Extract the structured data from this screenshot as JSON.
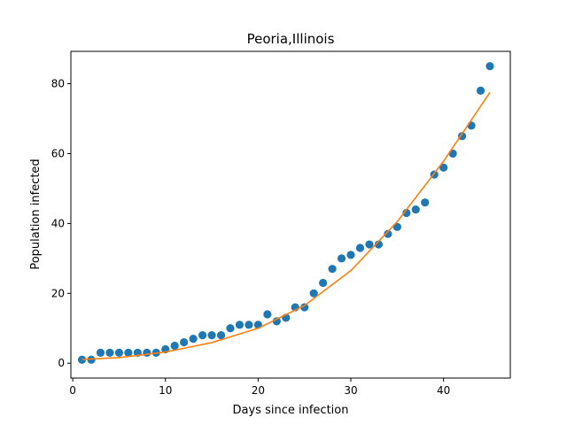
{
  "chart_data": {
    "type": "scatter",
    "title": "Peoria,Illinois",
    "xlabel": "Days since infection",
    "ylabel": "Population infected",
    "xlim": [
      -0.2,
      47.2
    ],
    "ylim": [
      -4.25,
      89.25
    ],
    "xticks": [
      0,
      10,
      20,
      30,
      40
    ],
    "yticks": [
      0,
      20,
      40,
      60,
      80
    ],
    "grid": false,
    "colors": {
      "points": "#1f77b4",
      "fit": "#ff7f0e"
    },
    "series": [
      {
        "type": "scatter",
        "x": [
          1,
          2,
          3,
          4,
          5,
          6,
          7,
          8,
          9,
          10,
          11,
          12,
          13,
          14,
          15,
          16,
          17,
          18,
          19,
          20,
          21,
          22,
          23,
          24,
          25,
          26,
          27,
          28,
          29,
          30,
          31,
          32,
          33,
          34,
          35,
          36,
          37,
          38,
          39,
          40,
          41,
          42,
          43,
          44,
          45
        ],
        "y": [
          1,
          1,
          3,
          3,
          3,
          3,
          3,
          3,
          3,
          4,
          5,
          6,
          7,
          8,
          8,
          8,
          10,
          11,
          11,
          11,
          14,
          12,
          13,
          16,
          16,
          20,
          23,
          27,
          30,
          31,
          33,
          34,
          34,
          37,
          39,
          43,
          44,
          46,
          54,
          56,
          60,
          65,
          68,
          78,
          85
        ]
      },
      {
        "type": "line",
        "x": [
          1,
          5,
          10,
          15,
          20,
          25,
          30,
          35,
          40,
          45
        ],
        "y": [
          1.1,
          1.6,
          3.2,
          5.9,
          10.0,
          16.5,
          26.5,
          40.5,
          57.8,
          77.5
        ]
      }
    ]
  }
}
